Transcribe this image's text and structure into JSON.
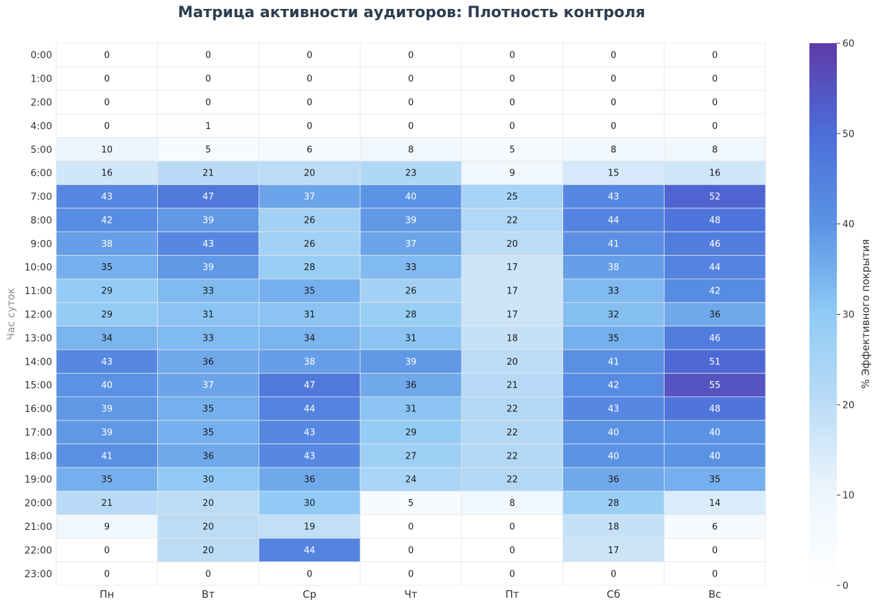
{
  "colors": {
    "scale": [
      "#ffffff",
      "#eef6fd",
      "#bcdcf6",
      "#90caf5",
      "#5b93e4",
      "#4c6ed9",
      "#5e3aa8"
    ],
    "title": "#2c3e50",
    "cell_border": "#ffffff",
    "grid": "#e4e7ea"
  },
  "chart_data": {
    "type": "heatmap",
    "title": "Матрица активности аудиторов: Плотность контроля",
    "xlabel": "",
    "ylabel": "Час суток",
    "x_categories": [
      "Пн",
      "Вт",
      "Ср",
      "Чт",
      "Пт",
      "Сб",
      "Вс"
    ],
    "y_categories": [
      "0:00",
      "1:00",
      "2:00",
      "4:00",
      "5:00",
      "6:00",
      "7:00",
      "8:00",
      "9:00",
      "10:00",
      "11:00",
      "12:00",
      "13:00",
      "14:00",
      "15:00",
      "16:00",
      "17:00",
      "18:00",
      "19:00",
      "20:00",
      "21:00",
      "22:00",
      "23:00"
    ],
    "values": [
      [
        0,
        0,
        0,
        0,
        0,
        0,
        0
      ],
      [
        0,
        0,
        0,
        0,
        0,
        0,
        0
      ],
      [
        0,
        0,
        0,
        0,
        0,
        0,
        0
      ],
      [
        0,
        1,
        0,
        0,
        0,
        0,
        0
      ],
      [
        10,
        5,
        6,
        8,
        5,
        8,
        8
      ],
      [
        16,
        21,
        20,
        23,
        9,
        15,
        16
      ],
      [
        43,
        47,
        37,
        40,
        25,
        43,
        52
      ],
      [
        42,
        39,
        26,
        39,
        22,
        44,
        48
      ],
      [
        38,
        43,
        26,
        37,
        20,
        41,
        46
      ],
      [
        35,
        39,
        28,
        33,
        17,
        38,
        44
      ],
      [
        29,
        33,
        35,
        26,
        17,
        33,
        42
      ],
      [
        29,
        31,
        31,
        28,
        17,
        32,
        36
      ],
      [
        34,
        33,
        34,
        31,
        18,
        35,
        46
      ],
      [
        43,
        36,
        38,
        39,
        20,
        41,
        51
      ],
      [
        40,
        37,
        47,
        36,
        21,
        42,
        55
      ],
      [
        39,
        35,
        44,
        31,
        22,
        43,
        48
      ],
      [
        39,
        35,
        43,
        29,
        22,
        40,
        40
      ],
      [
        41,
        36,
        43,
        27,
        22,
        40,
        40
      ],
      [
        35,
        30,
        36,
        24,
        22,
        36,
        35
      ],
      [
        21,
        20,
        30,
        5,
        8,
        28,
        14
      ],
      [
        9,
        20,
        19,
        0,
        0,
        18,
        6
      ],
      [
        0,
        20,
        44,
        0,
        0,
        17,
        0
      ],
      [
        0,
        0,
        0,
        0,
        0,
        0,
        0
      ]
    ],
    "colorbar": {
      "label": "% Эффективного покрытия",
      "range": [
        0,
        60
      ],
      "ticks": [
        0,
        10,
        20,
        30,
        40,
        50,
        60
      ]
    },
    "text_threshold": 36
  }
}
